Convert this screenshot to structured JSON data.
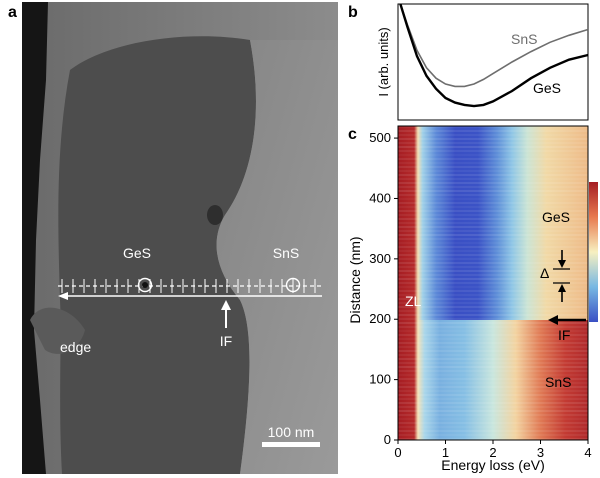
{
  "panels": {
    "a": {
      "letter": "a",
      "labels": {
        "ges": "GeS",
        "sns": "SnS",
        "edge": "edge",
        "interface": "IF",
        "scale_bar": "100 nm"
      }
    },
    "b": {
      "letter": "b",
      "ylabel": "I (arb. units)",
      "series_labels": {
        "sns": "SnS",
        "ges": "GeS"
      }
    },
    "c": {
      "letter": "c",
      "labels": {
        "zl": "ZL",
        "ges": "GeS",
        "sns": "SnS",
        "delta": "Δ",
        "interface": "IF"
      }
    }
  },
  "colors": {
    "sns_spectrum": "#6e6e6e",
    "ges_spectrum": "#000000",
    "map_high": "#a51d23",
    "map_low": "#3a4fc4"
  },
  "chart_data": [
    {
      "type": "line",
      "panel": "b",
      "title": "",
      "xlabel": "",
      "ylabel": "I (arb. units)",
      "xlim": [
        0,
        4
      ],
      "ylim": [
        0,
        1
      ],
      "series": [
        {
          "name": "SnS",
          "x": [
            0.05,
            0.2,
            0.4,
            0.6,
            0.8,
            1.0,
            1.2,
            1.4,
            1.6,
            1.8,
            2.0,
            2.4,
            2.8,
            3.2,
            3.6,
            4.0
          ],
          "values": [
            1.0,
            0.82,
            0.6,
            0.45,
            0.36,
            0.31,
            0.29,
            0.29,
            0.31,
            0.35,
            0.4,
            0.5,
            0.59,
            0.67,
            0.73,
            0.78
          ]
        },
        {
          "name": "GeS",
          "x": [
            0.05,
            0.2,
            0.4,
            0.6,
            0.8,
            1.0,
            1.2,
            1.4,
            1.6,
            1.8,
            2.0,
            2.4,
            2.8,
            3.2,
            3.6,
            4.0
          ],
          "values": [
            1.0,
            0.8,
            0.55,
            0.38,
            0.27,
            0.19,
            0.15,
            0.13,
            0.12,
            0.13,
            0.16,
            0.25,
            0.36,
            0.45,
            0.52,
            0.56
          ]
        }
      ]
    },
    {
      "type": "heatmap",
      "panel": "c",
      "title": "",
      "xlabel": "Energy loss (eV)",
      "ylabel": "Distance (nm)",
      "xlim": [
        0,
        4
      ],
      "ylim": [
        0,
        520
      ],
      "x_ticks": [
        0,
        1,
        2,
        3,
        4
      ],
      "y_ticks": [
        0,
        100,
        200,
        300,
        400,
        500
      ],
      "interface_distance": 200,
      "regions": [
        {
          "name": "GeS",
          "distance_range": [
            200,
            520
          ]
        },
        {
          "name": "SnS",
          "distance_range": [
            0,
            200
          ]
        }
      ],
      "colorbar": {
        "high": "red",
        "low": "blue"
      }
    }
  ]
}
